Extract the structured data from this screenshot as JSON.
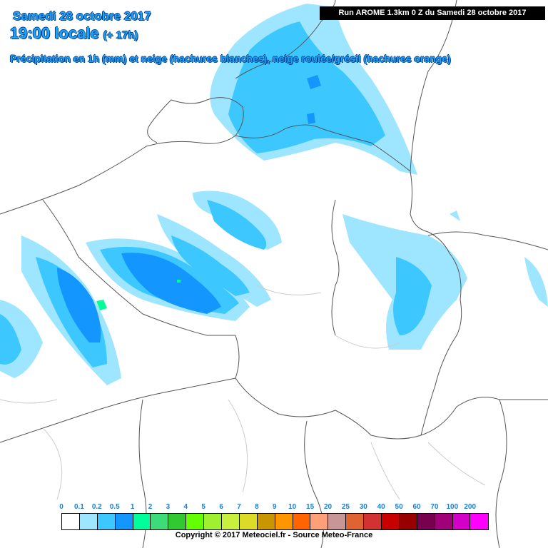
{
  "header": {
    "date": "Samedi 28 octobre 2017",
    "time": "19:00 locale",
    "offset": "(+ 17h)",
    "description": "Précipitation en 1h (mm) et neige (hachures blanches), neige roulée/grésil (hachures orange)",
    "run_info": "Run AROME 1.3km 0 Z du Samedi 28 octobre 2017"
  },
  "legend": {
    "labels": [
      "0",
      "0.1",
      "0.2",
      "0.5",
      "1",
      "2",
      "3",
      "4",
      "5",
      "6",
      "7",
      "8",
      "9",
      "10",
      "15",
      "20",
      "25",
      "30",
      "40",
      "50",
      "60",
      "70",
      "100",
      "200"
    ],
    "colors": [
      "#ffffff",
      "#9ee6ff",
      "#3cc8ff",
      "#1496ff",
      "#00ff9a",
      "#3cdc78",
      "#32c832",
      "#64ff00",
      "#a0f032",
      "#c8f03c",
      "#dcdc28",
      "#c89600",
      "#ff9600",
      "#ff6400",
      "#ffa078",
      "#c89696",
      "#e06432",
      "#d23232",
      "#c80000",
      "#960000",
      "#780050",
      "#a00078",
      "#d200c8",
      "#ff00ff"
    ],
    "copyright": "Copyright © 2017 Meteociel.fr - Source Meteo-France"
  },
  "precip_colors": {
    "light": "#9ee6ff",
    "medium": "#3cc8ff",
    "heavy": "#1496ff",
    "very_heavy": "#00ff9a"
  }
}
